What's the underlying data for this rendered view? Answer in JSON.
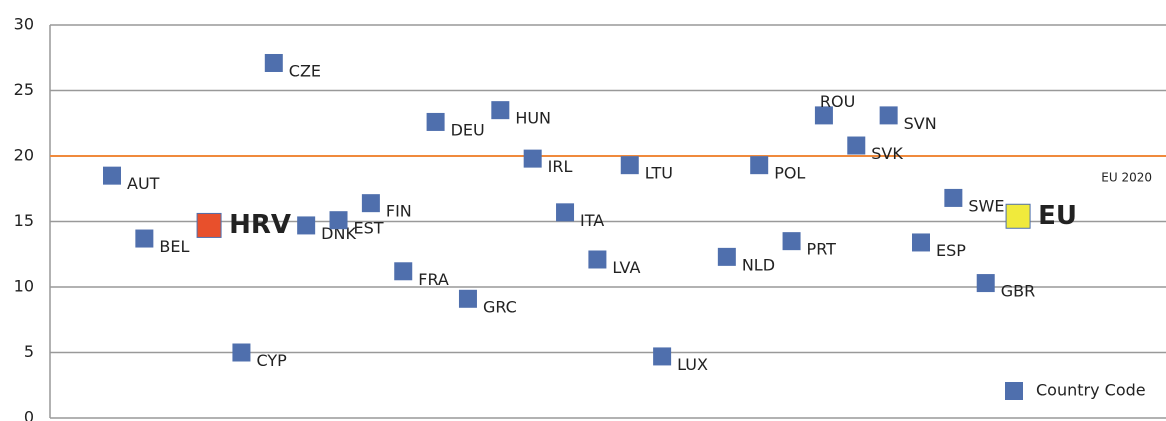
{
  "chart_data": {
    "type": "scatter",
    "categories": [
      "AUT",
      "BEL",
      null,
      "HRV",
      "CYP",
      "CZE",
      "DNK",
      "EST",
      "FIN",
      "FRA",
      "DEU",
      "GRC",
      "HUN",
      "IRL",
      "ITA",
      "LVA",
      "LTU",
      "LUX",
      null,
      "NLD",
      "POL",
      "PRT",
      "ROU",
      "SVK",
      "SVN",
      "ESP",
      "SWE",
      "GBR",
      "EU"
    ],
    "series": [
      {
        "name": "Country Code",
        "color": "#4f6fad",
        "values": [
          18.5,
          13.7,
          null,
          14.7,
          5.0,
          27.1,
          14.7,
          15.1,
          16.4,
          11.2,
          22.6,
          9.1,
          23.5,
          19.8,
          15.7,
          12.1,
          19.3,
          4.7,
          null,
          12.3,
          19.3,
          13.5,
          23.1,
          20.8,
          23.1,
          13.4,
          16.8,
          10.3,
          15.4
        ],
        "point_colors": [
          "#4f6fad",
          "#4f6fad",
          null,
          "#e8502c",
          "#4f6fad",
          "#4f6fad",
          "#4f6fad",
          "#4f6fad",
          "#4f6fad",
          "#4f6fad",
          "#4f6fad",
          "#4f6fad",
          "#4f6fad",
          "#4f6fad",
          "#4f6fad",
          "#4f6fad",
          "#4f6fad",
          "#4f6fad",
          null,
          "#4f6fad",
          "#4f6fad",
          "#4f6fad",
          "#4f6fad",
          "#4f6fad",
          "#4f6fad",
          "#4f6fad",
          "#4f6fad",
          "#4f6fad",
          "#f0ea3c"
        ]
      }
    ],
    "ylim": [
      0,
      30
    ],
    "yticks": [
      0,
      5,
      10,
      15,
      20,
      25,
      30
    ],
    "grid": true,
    "reference_line": {
      "value": 20,
      "label": "EU 2020",
      "color": "#f08a3c"
    },
    "legend": "lower right"
  }
}
